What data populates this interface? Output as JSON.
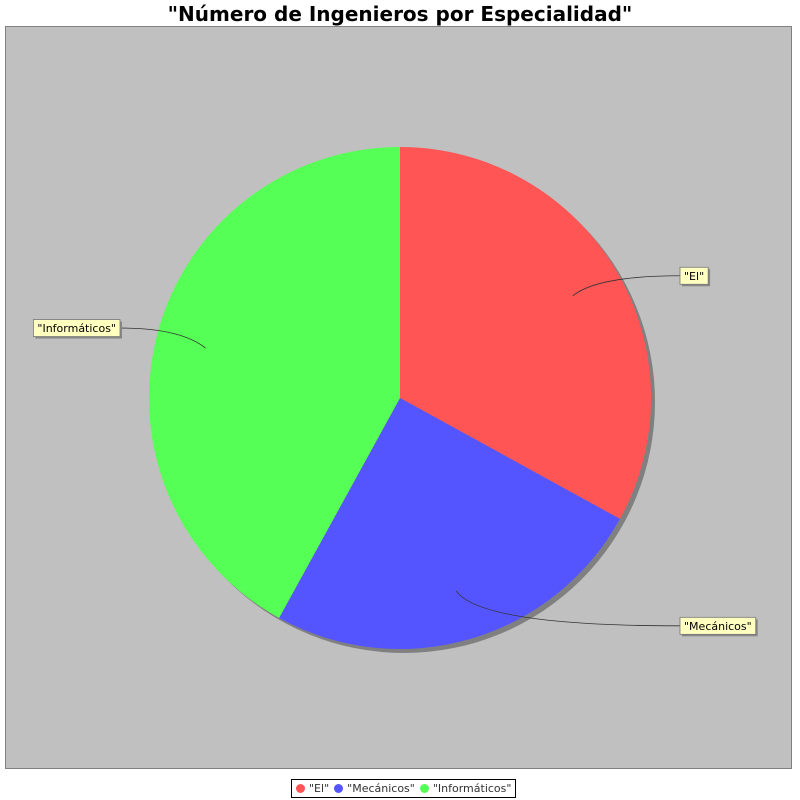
{
  "chart_data": {
    "type": "pie",
    "title": "\"Número de Ingenieros por Especialidad\"",
    "categories": [
      "\"El\"",
      "\"Mecánicos\"",
      "\"Informáticos\""
    ],
    "values": [
      33,
      25,
      42
    ],
    "colors": [
      "#ff5555",
      "#5555ff",
      "#55ff55"
    ],
    "background": "#c0c0c0",
    "legend_position": "bottom"
  }
}
